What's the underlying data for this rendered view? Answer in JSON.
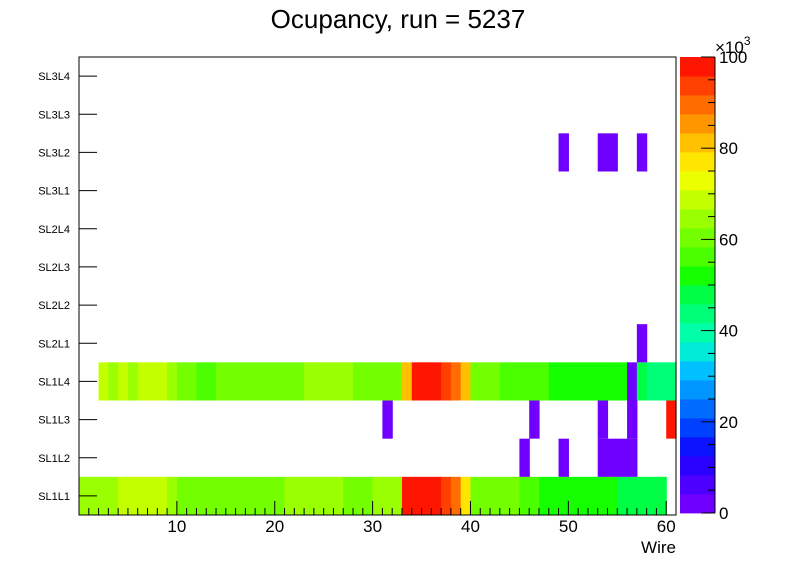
{
  "chart_data": {
    "type": "heatmap",
    "title": "Ocupancy, run = 5237",
    "xlabel": "Wire",
    "ylabel": "",
    "xlim": [
      0,
      61
    ],
    "x_ticks": [
      10,
      20,
      30,
      40,
      50,
      60
    ],
    "y_categories": [
      "SL1L1",
      "SL1L2",
      "SL1L3",
      "SL1L4",
      "SL2L1",
      "SL2L2",
      "SL2L3",
      "SL2L4",
      "SL3L1",
      "SL3L2",
      "SL3L3",
      "SL3L4"
    ],
    "z_range": [
      0,
      100000
    ],
    "z_exponent_label": "×10",
    "z_exponent_power": "3",
    "z_ticks": [
      "0",
      "20",
      "40",
      "60",
      "80",
      "100"
    ],
    "z_unit": 1000,
    "palette": [
      "#6f00ff",
      "#4c00ff",
      "#2a00ff",
      "#0c14ff",
      "#0040ff",
      "#006cff",
      "#0096ff",
      "#00c0ff",
      "#00ead8",
      "#00ffa8",
      "#00ff78",
      "#00ff44",
      "#16ff00",
      "#4cff00",
      "#74ff00",
      "#9aff00",
      "#c4ff00",
      "#ecff00",
      "#ffe600",
      "#ffc000",
      "#ff9600",
      "#ff6c00",
      "#ff4000",
      "#ff1600"
    ],
    "rows": {
      "SL1L1": [
        66000,
        66000,
        66000,
        66000,
        68000,
        70000,
        70000,
        70000,
        70000,
        66000,
        60000,
        60000,
        60000,
        62000,
        62000,
        62000,
        60000,
        60000,
        61000,
        61000,
        61000,
        64000,
        64000,
        64000,
        64000,
        64000,
        64000,
        61000,
        61000,
        61000,
        64000,
        64000,
        64000,
        98000,
        98000,
        98000,
        98000,
        93000,
        88000,
        76000,
        61000,
        59000,
        59000,
        59000,
        59000,
        56000,
        56000,
        52000,
        52000,
        52000,
        52000,
        52000,
        52000,
        52000,
        52000,
        48000,
        48000,
        48000,
        48000,
        48000,
        0
      ],
      "SL1L2": [
        0,
        0,
        0,
        0,
        0,
        0,
        0,
        0,
        0,
        0,
        0,
        0,
        0,
        0,
        0,
        0,
        0,
        0,
        0,
        0,
        0,
        0,
        0,
        0,
        0,
        0,
        0,
        0,
        0,
        0,
        0,
        0,
        0,
        0,
        0,
        0,
        0,
        0,
        0,
        0,
        0,
        0,
        0,
        0,
        0,
        2000,
        0,
        0,
        0,
        2000,
        0,
        0,
        0,
        2000,
        2000,
        2000,
        2000,
        0,
        0,
        0,
        0
      ],
      "SL1L3": [
        0,
        0,
        0,
        0,
        0,
        0,
        0,
        0,
        0,
        0,
        0,
        0,
        0,
        0,
        0,
        0,
        0,
        0,
        0,
        0,
        0,
        0,
        0,
        0,
        0,
        0,
        0,
        0,
        0,
        0,
        0,
        2000,
        0,
        0,
        0,
        0,
        0,
        0,
        0,
        0,
        0,
        0,
        0,
        0,
        0,
        0,
        2000,
        0,
        0,
        0,
        0,
        0,
        0,
        2000,
        0,
        0,
        2000,
        0,
        0,
        0,
        100000
      ],
      "SL1L4": [
        0,
        0,
        68000,
        64000,
        68000,
        64000,
        68000,
        68000,
        68000,
        66000,
        62000,
        62000,
        58000,
        58000,
        62000,
        62000,
        62000,
        60000,
        60000,
        62000,
        62000,
        62000,
        62000,
        64000,
        64000,
        64000,
        64000,
        64000,
        60000,
        60000,
        62000,
        62000,
        62000,
        80000,
        96000,
        100000,
        100000,
        94000,
        88000,
        80000,
        62000,
        60000,
        60000,
        56000,
        56000,
        56000,
        56000,
        56000,
        50000,
        50000,
        50000,
        50000,
        50000,
        50000,
        50000,
        50000,
        2000,
        46000,
        42000,
        42000,
        42000
      ],
      "SL2L1": [
        0,
        0,
        0,
        0,
        0,
        0,
        0,
        0,
        0,
        0,
        0,
        0,
        0,
        0,
        0,
        0,
        0,
        0,
        0,
        0,
        0,
        0,
        0,
        0,
        0,
        0,
        0,
        0,
        0,
        0,
        0,
        0,
        0,
        0,
        0,
        0,
        0,
        0,
        0,
        0,
        0,
        0,
        0,
        0,
        0,
        0,
        0,
        0,
        0,
        0,
        0,
        0,
        0,
        0,
        0,
        0,
        0,
        2000,
        0,
        0,
        0
      ],
      "SL2L2": [],
      "SL2L3": [],
      "SL2L4": [],
      "SL3L1": [],
      "SL3L2": [
        0,
        0,
        0,
        0,
        0,
        0,
        0,
        0,
        0,
        0,
        0,
        0,
        0,
        0,
        0,
        0,
        0,
        0,
        0,
        0,
        0,
        0,
        0,
        0,
        0,
        0,
        0,
        0,
        0,
        0,
        0,
        0,
        0,
        0,
        0,
        0,
        0,
        0,
        0,
        0,
        0,
        0,
        0,
        0,
        0,
        0,
        0,
        0,
        0,
        2000,
        0,
        0,
        0,
        2000,
        2000,
        0,
        0,
        2000,
        0,
        0,
        0
      ],
      "SL3L3": [],
      "SL3L4": []
    }
  }
}
